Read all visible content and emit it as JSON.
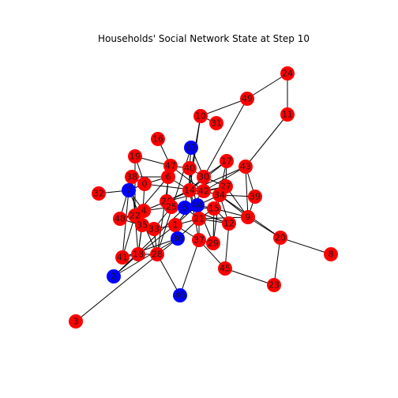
{
  "title": "Households' Social Network State at Step 10",
  "colors": {
    "red": "#ff0000",
    "blue": "#0000ff",
    "edge": "#000000",
    "label": "#1a1a1a",
    "background": "#ffffff"
  },
  "nodes": [
    {
      "id": "24",
      "state": "red",
      "label": "24"
    },
    {
      "id": "49",
      "state": "red",
      "label": "49"
    },
    {
      "id": "11",
      "state": "red",
      "label": "11"
    },
    {
      "id": "10",
      "state": "red",
      "label": "10"
    },
    {
      "id": "31",
      "state": "red",
      "label": "31"
    },
    {
      "id": "16",
      "state": "red",
      "label": "16"
    },
    {
      "id": "13",
      "state": "blue",
      "label": "13"
    },
    {
      "id": "19",
      "state": "red",
      "label": "19"
    },
    {
      "id": "17",
      "state": "red",
      "label": "17"
    },
    {
      "id": "43",
      "state": "red",
      "label": "43"
    },
    {
      "id": "47",
      "state": "red",
      "label": "47"
    },
    {
      "id": "40",
      "state": "red",
      "label": "40"
    },
    {
      "id": "30",
      "state": "red",
      "label": "30"
    },
    {
      "id": "38",
      "state": "red",
      "label": "38"
    },
    {
      "id": "6",
      "state": "red",
      "label": "6"
    },
    {
      "id": "0",
      "state": "red",
      "label": "0"
    },
    {
      "id": "27",
      "state": "red",
      "label": "27"
    },
    {
      "id": "7",
      "state": "blue",
      "label": "7"
    },
    {
      "id": "32",
      "state": "red",
      "label": "32"
    },
    {
      "id": "14",
      "state": "red",
      "label": "14"
    },
    {
      "id": "42",
      "state": "red",
      "label": "42"
    },
    {
      "id": "34",
      "state": "red",
      "label": "34"
    },
    {
      "id": "39",
      "state": "red",
      "label": "39"
    },
    {
      "id": "26",
      "state": "red",
      "label": "26"
    },
    {
      "id": "44",
      "state": "blue",
      "label": "44"
    },
    {
      "id": "25",
      "state": "red",
      "label": "25"
    },
    {
      "id": "5",
      "state": "blue",
      "label": "5"
    },
    {
      "id": "15",
      "state": "red",
      "label": "15"
    },
    {
      "id": "4",
      "state": "red",
      "label": "4"
    },
    {
      "id": "22",
      "state": "red",
      "label": "22"
    },
    {
      "id": "48",
      "state": "red",
      "label": "48"
    },
    {
      "id": "9",
      "state": "red",
      "label": "9"
    },
    {
      "id": "21",
      "state": "red",
      "label": "21"
    },
    {
      "id": "12",
      "state": "red",
      "label": "12"
    },
    {
      "id": "35",
      "state": "red",
      "label": "35"
    },
    {
      "id": "33",
      "state": "red",
      "label": "33"
    },
    {
      "id": "1",
      "state": "red",
      "label": "1"
    },
    {
      "id": "20",
      "state": "red",
      "label": "20"
    },
    {
      "id": "36",
      "state": "blue",
      "label": "36"
    },
    {
      "id": "37",
      "state": "red",
      "label": "37"
    },
    {
      "id": "29",
      "state": "red",
      "label": "29"
    },
    {
      "id": "41",
      "state": "red",
      "label": "41"
    },
    {
      "id": "18",
      "state": "red",
      "label": "18"
    },
    {
      "id": "28",
      "state": "red",
      "label": "28"
    },
    {
      "id": "8",
      "state": "red",
      "label": "8"
    },
    {
      "id": "45",
      "state": "red",
      "label": "45"
    },
    {
      "id": "2",
      "state": "blue",
      "label": "2"
    },
    {
      "id": "23",
      "state": "red",
      "label": "23"
    },
    {
      "id": "46",
      "state": "blue",
      "label": "46"
    },
    {
      "id": "3",
      "state": "red",
      "label": "3"
    }
  ],
  "edges": [
    [
      "24",
      "49"
    ],
    [
      "24",
      "11"
    ],
    [
      "49",
      "10"
    ],
    [
      "49",
      "30"
    ],
    [
      "11",
      "43"
    ],
    [
      "10",
      "31"
    ],
    [
      "10",
      "14"
    ],
    [
      "10",
      "5"
    ],
    [
      "16",
      "47"
    ],
    [
      "13",
      "40"
    ],
    [
      "13",
      "30"
    ],
    [
      "13",
      "28"
    ],
    [
      "19",
      "47"
    ],
    [
      "19",
      "0"
    ],
    [
      "19",
      "22"
    ],
    [
      "17",
      "27"
    ],
    [
      "17",
      "34"
    ],
    [
      "17",
      "14"
    ],
    [
      "17",
      "30"
    ],
    [
      "43",
      "39"
    ],
    [
      "43",
      "42"
    ],
    [
      "43",
      "9"
    ],
    [
      "43",
      "26"
    ],
    [
      "47",
      "40"
    ],
    [
      "47",
      "6"
    ],
    [
      "47",
      "42"
    ],
    [
      "47",
      "28"
    ],
    [
      "40",
      "30"
    ],
    [
      "40",
      "14"
    ],
    [
      "40",
      "21"
    ],
    [
      "30",
      "42"
    ],
    [
      "30",
      "27"
    ],
    [
      "30",
      "14"
    ],
    [
      "38",
      "6"
    ],
    [
      "38",
      "22"
    ],
    [
      "38",
      "0"
    ],
    [
      "38",
      "48"
    ],
    [
      "38",
      "18"
    ],
    [
      "6",
      "14"
    ],
    [
      "6",
      "26"
    ],
    [
      "6",
      "0"
    ],
    [
      "6",
      "22"
    ],
    [
      "0",
      "7"
    ],
    [
      "0",
      "42"
    ],
    [
      "0",
      "35"
    ],
    [
      "27",
      "34"
    ],
    [
      "27",
      "9"
    ],
    [
      "27",
      "42"
    ],
    [
      "27",
      "26"
    ],
    [
      "7",
      "32"
    ],
    [
      "7",
      "4"
    ],
    [
      "7",
      "41"
    ],
    [
      "7",
      "28"
    ],
    [
      "14",
      "42"
    ],
    [
      "14",
      "26"
    ],
    [
      "14",
      "21"
    ],
    [
      "14",
      "37"
    ],
    [
      "42",
      "34"
    ],
    [
      "42",
      "1"
    ],
    [
      "34",
      "39"
    ],
    [
      "34",
      "15"
    ],
    [
      "34",
      "44"
    ],
    [
      "34",
      "9"
    ],
    [
      "34",
      "12"
    ],
    [
      "39",
      "9"
    ],
    [
      "26",
      "25"
    ],
    [
      "26",
      "4"
    ],
    [
      "26",
      "12"
    ],
    [
      "44",
      "25"
    ],
    [
      "44",
      "15"
    ],
    [
      "44",
      "21"
    ],
    [
      "44",
      "1"
    ],
    [
      "44",
      "29"
    ],
    [
      "25",
      "5"
    ],
    [
      "25",
      "4"
    ],
    [
      "25",
      "33"
    ],
    [
      "5",
      "12"
    ],
    [
      "5",
      "15"
    ],
    [
      "5",
      "21"
    ],
    [
      "5",
      "2"
    ],
    [
      "15",
      "12"
    ],
    [
      "15",
      "21"
    ],
    [
      "15",
      "29"
    ],
    [
      "15",
      "9"
    ],
    [
      "4",
      "22"
    ],
    [
      "4",
      "48"
    ],
    [
      "4",
      "18"
    ],
    [
      "22",
      "35"
    ],
    [
      "22",
      "48"
    ],
    [
      "22",
      "41"
    ],
    [
      "48",
      "33"
    ],
    [
      "9",
      "20"
    ],
    [
      "9",
      "21"
    ],
    [
      "21",
      "1"
    ],
    [
      "21",
      "37"
    ],
    [
      "21",
      "12"
    ],
    [
      "21",
      "36"
    ],
    [
      "12",
      "45"
    ],
    [
      "35",
      "33"
    ],
    [
      "35",
      "18"
    ],
    [
      "33",
      "1"
    ],
    [
      "33",
      "28"
    ],
    [
      "1",
      "37"
    ],
    [
      "1",
      "18"
    ],
    [
      "20",
      "8"
    ],
    [
      "20",
      "23"
    ],
    [
      "20",
      "34"
    ],
    [
      "36",
      "41"
    ],
    [
      "37",
      "29"
    ],
    [
      "37",
      "45"
    ],
    [
      "29",
      "34"
    ],
    [
      "41",
      "18"
    ],
    [
      "18",
      "28"
    ],
    [
      "18",
      "2"
    ],
    [
      "28",
      "46"
    ],
    [
      "45",
      "23"
    ],
    [
      "2",
      "36"
    ],
    [
      "46",
      "37"
    ],
    [
      "3",
      "36"
    ]
  ]
}
